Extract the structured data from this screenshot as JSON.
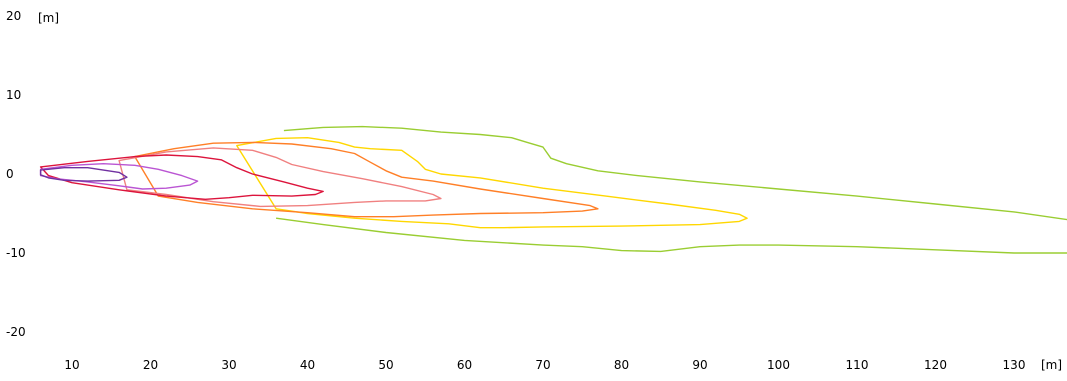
{
  "chart_data": {
    "type": "line",
    "title": "",
    "xlabel": "[m]",
    "ylabel": "[m]",
    "xlim": [
      5.5,
      137
    ],
    "ylim": [
      -21,
      20
    ],
    "x_ticks": [
      10,
      20,
      30,
      40,
      50,
      60,
      70,
      80,
      90,
      100,
      110,
      120,
      130
    ],
    "y_ticks": [
      20,
      10,
      0,
      -10,
      -20
    ],
    "grid": false,
    "legend": "none",
    "series": [
      {
        "color": "#9acd32",
        "closed": false,
        "points": [
          [
            37,
            5.5
          ],
          [
            42,
            5.9
          ],
          [
            47,
            6.0
          ],
          [
            52,
            5.8
          ],
          [
            57,
            5.3
          ],
          [
            62,
            5.0
          ],
          [
            66,
            4.6
          ],
          [
            68,
            4.0
          ],
          [
            70,
            3.4
          ],
          [
            71,
            2.0
          ],
          [
            73,
            1.3
          ],
          [
            77,
            0.4
          ],
          [
            82,
            -0.2
          ],
          [
            90,
            -1.0
          ],
          [
            100,
            -1.9
          ],
          [
            110,
            -2.8
          ],
          [
            120,
            -3.8
          ],
          [
            130,
            -4.8
          ],
          [
            137,
            -5.8
          ]
        ]
      },
      {
        "color": "#9acd32",
        "closed": false,
        "points": [
          [
            36,
            -5.6
          ],
          [
            42,
            -6.4
          ],
          [
            50,
            -7.4
          ],
          [
            60,
            -8.4
          ],
          [
            70,
            -9.0
          ],
          [
            75,
            -9.2
          ],
          [
            80,
            -9.7
          ],
          [
            85,
            -9.8
          ],
          [
            90,
            -9.2
          ],
          [
            95,
            -9.0
          ],
          [
            100,
            -9.0
          ],
          [
            110,
            -9.2
          ],
          [
            120,
            -9.6
          ],
          [
            130,
            -10.0
          ],
          [
            137,
            -10.0
          ]
        ]
      },
      {
        "color": "#ffd700",
        "closed": true,
        "points": [
          [
            31,
            3.6
          ],
          [
            36,
            4.5
          ],
          [
            40,
            4.6
          ],
          [
            44,
            4.0
          ],
          [
            46,
            3.4
          ],
          [
            48,
            3.2
          ],
          [
            50,
            3.1
          ],
          [
            52,
            3.0
          ],
          [
            54,
            1.6
          ],
          [
            55,
            0.6
          ],
          [
            57,
            0.0
          ],
          [
            62,
            -0.5
          ],
          [
            70,
            -1.8
          ],
          [
            78,
            -2.8
          ],
          [
            86,
            -3.8
          ],
          [
            92,
            -4.6
          ],
          [
            95,
            -5.1
          ],
          [
            96,
            -5.6
          ],
          [
            95,
            -6.0
          ],
          [
            90,
            -6.4
          ],
          [
            80,
            -6.6
          ],
          [
            70,
            -6.7
          ],
          [
            65,
            -6.8
          ],
          [
            62,
            -6.8
          ],
          [
            58,
            -6.3
          ],
          [
            52,
            -6.0
          ],
          [
            46,
            -5.6
          ],
          [
            40,
            -5.0
          ],
          [
            36,
            -4.4
          ]
        ]
      },
      {
        "color": "#ff7f27",
        "closed": true,
        "points": [
          [
            18,
            2.2
          ],
          [
            23,
            3.2
          ],
          [
            28,
            3.9
          ],
          [
            33,
            4.0
          ],
          [
            38,
            3.8
          ],
          [
            43,
            3.2
          ],
          [
            46,
            2.6
          ],
          [
            48,
            1.5
          ],
          [
            50,
            0.4
          ],
          [
            52,
            -0.4
          ],
          [
            56,
            -0.9
          ],
          [
            62,
            -1.9
          ],
          [
            70,
            -3.1
          ],
          [
            76,
            -4.0
          ],
          [
            77,
            -4.4
          ],
          [
            75,
            -4.7
          ],
          [
            70,
            -4.9
          ],
          [
            62,
            -5.0
          ],
          [
            56,
            -5.2
          ],
          [
            51,
            -5.4
          ],
          [
            46,
            -5.4
          ],
          [
            40,
            -4.9
          ],
          [
            33,
            -4.4
          ],
          [
            26,
            -3.6
          ],
          [
            21,
            -2.8
          ]
        ]
      },
      {
        "color": "#f08080",
        "closed": true,
        "points": [
          [
            16,
            1.7
          ],
          [
            22,
            2.8
          ],
          [
            28,
            3.3
          ],
          [
            33,
            3.0
          ],
          [
            36,
            2.1
          ],
          [
            38,
            1.2
          ],
          [
            42,
            0.3
          ],
          [
            47,
            -0.6
          ],
          [
            52,
            -1.6
          ],
          [
            56,
            -2.6
          ],
          [
            57,
            -3.1
          ],
          [
            55,
            -3.4
          ],
          [
            50,
            -3.4
          ],
          [
            46,
            -3.6
          ],
          [
            40,
            -4.0
          ],
          [
            34,
            -4.1
          ],
          [
            28,
            -3.5
          ],
          [
            22,
            -2.6
          ],
          [
            17,
            -2.0
          ]
        ]
      },
      {
        "color": "#dc143c",
        "closed": true,
        "points": [
          [
            6,
            0.9
          ],
          [
            12,
            1.6
          ],
          [
            18,
            2.2
          ],
          [
            22,
            2.4
          ],
          [
            26,
            2.2
          ],
          [
            29,
            1.8
          ],
          [
            31,
            0.8
          ],
          [
            33,
            0.0
          ],
          [
            37,
            -1.0
          ],
          [
            40,
            -1.8
          ],
          [
            42,
            -2.2
          ],
          [
            41,
            -2.6
          ],
          [
            38,
            -2.8
          ],
          [
            33,
            -2.7
          ],
          [
            30,
            -3.0
          ],
          [
            27,
            -3.2
          ],
          [
            22,
            -2.8
          ],
          [
            16,
            -2.0
          ],
          [
            10,
            -1.1
          ],
          [
            7,
            -0.2
          ]
        ]
      },
      {
        "color": "#ba55d3",
        "closed": true,
        "points": [
          [
            6,
            0.6
          ],
          [
            10,
            1.1
          ],
          [
            14,
            1.3
          ],
          [
            18,
            1.1
          ],
          [
            21,
            0.6
          ],
          [
            24,
            -0.2
          ],
          [
            26,
            -0.9
          ],
          [
            25,
            -1.4
          ],
          [
            22,
            -1.8
          ],
          [
            19,
            -1.9
          ],
          [
            16,
            -1.5
          ],
          [
            12,
            -1.0
          ],
          [
            8,
            -0.6
          ],
          [
            6,
            -0.2
          ]
        ]
      },
      {
        "color": "#7030a0",
        "closed": true,
        "points": [
          [
            6,
            0.5
          ],
          [
            9,
            0.8
          ],
          [
            12,
            0.8
          ],
          [
            14,
            0.5
          ],
          [
            16,
            0.2
          ],
          [
            17,
            -0.4
          ],
          [
            16,
            -0.8
          ],
          [
            12,
            -0.9
          ],
          [
            9,
            -0.8
          ],
          [
            7,
            -0.5
          ],
          [
            6,
            -0.1
          ]
        ]
      }
    ]
  }
}
